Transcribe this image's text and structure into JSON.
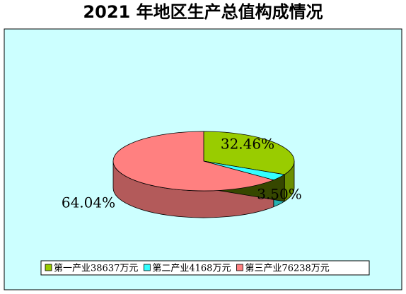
{
  "chart_data": {
    "type": "pie",
    "title": "2021 年地区生产总值构成情况",
    "categories": [
      "第一产业38637万元",
      "第二产业4168万元",
      "第三产业76238万元"
    ],
    "values": [
      32.46,
      3.5,
      64.04
    ],
    "value_labels": [
      "32.46%",
      "3.50%",
      "64.04%"
    ],
    "colors": [
      "#99cc00",
      "#33ffff",
      "#ff8080"
    ],
    "legend": "bottom"
  }
}
